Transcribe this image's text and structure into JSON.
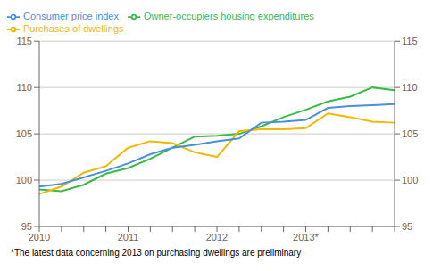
{
  "chart_data": {
    "type": "line",
    "footnote": "*The latest data concerning 2013 on purchasing dwellings are preliminary",
    "categories": [
      "2010",
      null,
      null,
      null,
      "2011",
      null,
      null,
      null,
      "2012",
      null,
      null,
      null,
      "2013*",
      null,
      null,
      null,
      null
    ],
    "series": [
      {
        "name": "Owner-occupiers housing expenditures",
        "color": "#3db84a",
        "values": [
          99.0,
          98.8,
          99.5,
          100.7,
          101.3,
          102.3,
          103.5,
          104.7,
          104.8,
          105.0,
          105.8,
          106.8,
          107.6,
          108.5,
          109.0,
          110.0,
          109.7
        ]
      },
      {
        "name": "Purchases of dwellings",
        "color": "#f0b800",
        "values": [
          98.5,
          99.3,
          100.8,
          101.5,
          103.5,
          104.2,
          104.0,
          103.0,
          102.5,
          105.3,
          105.5,
          105.5,
          105.6,
          107.2,
          106.8,
          106.3,
          106.2
        ]
      },
      {
        "name": "Consumer price index",
        "color": "#4a90d9",
        "values": [
          99.3,
          99.6,
          100.3,
          101.0,
          101.8,
          102.8,
          103.5,
          103.8,
          104.2,
          104.5,
          106.2,
          106.3,
          106.5,
          107.8,
          108.0,
          108.1,
          108.2
        ]
      }
    ],
    "ylim": [
      95,
      115
    ],
    "yticks": [
      95,
      100,
      105,
      110,
      115
    ],
    "y2lim": [
      95,
      115
    ],
    "y2ticks": [
      95,
      100,
      105,
      110,
      115
    ],
    "grid": true,
    "legend": "upper left"
  }
}
